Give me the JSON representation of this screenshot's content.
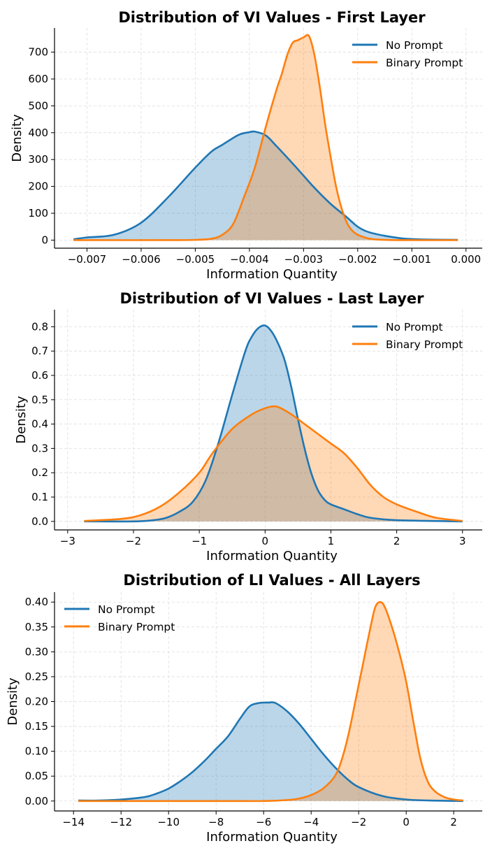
{
  "colors": {
    "no_prompt": "#1f77b4",
    "binary_prompt": "#ff7f0e"
  },
  "chart_data": [
    {
      "type": "line",
      "fill": true,
      "title": "Distribution of VI Values - First Layer",
      "xlabel": "Information Quantity",
      "ylabel": "Density",
      "xlim": [
        -0.0076,
        0.0003
      ],
      "ylim": [
        -30,
        790
      ],
      "xticks": [
        -0.007,
        -0.006,
        -0.005,
        -0.004,
        -0.003,
        -0.002,
        -0.001,
        0.0
      ],
      "xtick_labels": [
        "−0.007",
        "−0.006",
        "−0.005",
        "−0.004",
        "−0.003",
        "−0.002",
        "−0.001",
        "0.000"
      ],
      "yticks": [
        0,
        100,
        200,
        300,
        400,
        500,
        600,
        700
      ],
      "ytick_labels": [
        "0",
        "100",
        "200",
        "300",
        "400",
        "500",
        "600",
        "700"
      ],
      "legend_position": "top-right",
      "series": [
        {
          "name": "No Prompt",
          "x": [
            -0.00725,
            -0.007,
            -0.0065,
            -0.006,
            -0.0055,
            -0.005,
            -0.0047,
            -0.0045,
            -0.0042,
            -0.004,
            -0.0039,
            -0.0037,
            -0.0035,
            -0.0032,
            -0.003,
            -0.0028,
            -0.0025,
            -0.0022,
            -0.002,
            -0.0018,
            -0.0015,
            -0.0012,
            -0.001,
            -0.0007,
            -0.00015
          ],
          "values": [
            3,
            10,
            20,
            65,
            160,
            270,
            330,
            355,
            392,
            402,
            404,
            390,
            350,
            285,
            240,
            195,
            135,
            85,
            50,
            30,
            16,
            7,
            4,
            2,
            1
          ]
        },
        {
          "name": "Binary Prompt",
          "x": [
            -0.00725,
            -0.0055,
            -0.005,
            -0.0047,
            -0.0045,
            -0.0043,
            -0.0041,
            -0.0039,
            -0.0037,
            -0.0035,
            -0.0034,
            -0.0033,
            -0.0032,
            -0.0031,
            -0.003,
            -0.0029,
            -0.0028,
            -0.0027,
            -0.0026,
            -0.0025,
            -0.0024,
            -0.0023,
            -0.0022,
            -0.0021,
            -0.002,
            -0.0019,
            -0.0018,
            -0.0017,
            -0.0015,
            -0.0012,
            -0.00015
          ],
          "values": [
            0,
            0,
            1,
            5,
            20,
            60,
            160,
            270,
            420,
            560,
            620,
            690,
            735,
            745,
            755,
            760,
            690,
            570,
            430,
            310,
            200,
            120,
            65,
            35,
            20,
            12,
            6,
            3,
            1,
            0,
            0
          ]
        }
      ]
    },
    {
      "type": "line",
      "fill": true,
      "title": "Distribution of VI Values - Last Layer",
      "xlabel": "Information Quantity",
      "ylabel": "Density",
      "xlim": [
        -3.2,
        3.3
      ],
      "ylim": [
        -0.035,
        0.87
      ],
      "xticks": [
        -3,
        -2,
        -1,
        0,
        1,
        2,
        3
      ],
      "xtick_labels": [
        "−3",
        "−2",
        "−1",
        "0",
        "1",
        "2",
        "3"
      ],
      "yticks": [
        0.0,
        0.1,
        0.2,
        0.3,
        0.4,
        0.5,
        0.6,
        0.7,
        0.8
      ],
      "ytick_labels": [
        "0.0",
        "0.1",
        "0.2",
        "0.3",
        "0.4",
        "0.5",
        "0.6",
        "0.7",
        "0.8"
      ],
      "legend_position": "top-right",
      "series": [
        {
          "name": "No Prompt",
          "x": [
            -2.75,
            -2.0,
            -1.7,
            -1.5,
            -1.3,
            -1.1,
            -0.9,
            -0.7,
            -0.5,
            -0.3,
            -0.2,
            -0.1,
            0.0,
            0.1,
            0.2,
            0.3,
            0.4,
            0.5,
            0.6,
            0.7,
            0.8,
            0.9,
            1.0,
            1.2,
            1.4,
            1.6,
            2.0,
            3.0
          ],
          "values": [
            0,
            0,
            0.005,
            0.015,
            0.04,
            0.08,
            0.17,
            0.33,
            0.52,
            0.7,
            0.76,
            0.795,
            0.805,
            0.78,
            0.73,
            0.66,
            0.55,
            0.42,
            0.3,
            0.2,
            0.13,
            0.09,
            0.07,
            0.05,
            0.03,
            0.015,
            0.005,
            0.0
          ]
        },
        {
          "name": "Binary Prompt",
          "x": [
            -2.75,
            -2.2,
            -1.9,
            -1.6,
            -1.3,
            -1.0,
            -0.8,
            -0.5,
            -0.2,
            0.0,
            0.1,
            0.2,
            0.4,
            0.6,
            0.8,
            1.0,
            1.2,
            1.4,
            1.6,
            1.8,
            2.0,
            2.3,
            2.6,
            3.0
          ],
          "values": [
            0.002,
            0.01,
            0.025,
            0.06,
            0.12,
            0.2,
            0.28,
            0.38,
            0.44,
            0.465,
            0.472,
            0.47,
            0.44,
            0.4,
            0.36,
            0.32,
            0.28,
            0.22,
            0.15,
            0.1,
            0.07,
            0.04,
            0.015,
            0.002
          ]
        }
      ]
    },
    {
      "type": "line",
      "fill": true,
      "title": "Distribution of LI Values - All Layers",
      "xlabel": "Information Quantity",
      "ylabel": "Density",
      "xlim": [
        -14.8,
        3.2
      ],
      "ylim": [
        -0.02,
        0.42
      ],
      "xticks": [
        -14,
        -12,
        -10,
        -8,
        -6,
        -4,
        -2,
        0,
        2
      ],
      "xtick_labels": [
        "−14",
        "−12",
        "−10",
        "−8",
        "−6",
        "−4",
        "−2",
        "0",
        "2"
      ],
      "yticks": [
        0.0,
        0.05,
        0.1,
        0.15,
        0.2,
        0.25,
        0.3,
        0.35,
        0.4
      ],
      "ytick_labels": [
        "0.00",
        "0.05",
        "0.10",
        "0.15",
        "0.20",
        "0.25",
        "0.30",
        "0.35",
        "0.40"
      ],
      "legend_position": "top-left",
      "series": [
        {
          "name": "No Prompt",
          "x": [
            -13.8,
            -13.0,
            -12.0,
            -11.0,
            -10.5,
            -10.0,
            -9.5,
            -9.0,
            -8.5,
            -8.0,
            -7.5,
            -7.0,
            -6.6,
            -6.2,
            -5.8,
            -5.5,
            -5.0,
            -4.5,
            -4.0,
            -3.5,
            -3.0,
            -2.5,
            -2.0,
            -1.0,
            0.0,
            1.0,
            2.4
          ],
          "values": [
            0.001,
            0.001,
            0.003,
            0.008,
            0.015,
            0.025,
            0.04,
            0.058,
            0.08,
            0.105,
            0.13,
            0.165,
            0.19,
            0.197,
            0.198,
            0.197,
            0.18,
            0.155,
            0.125,
            0.095,
            0.068,
            0.045,
            0.028,
            0.01,
            0.003,
            0.001,
            0.0
          ]
        },
        {
          "name": "Binary Prompt",
          "x": [
            -13.8,
            -8.0,
            -6.0,
            -5.0,
            -4.5,
            -4.0,
            -3.5,
            -3.0,
            -2.7,
            -2.4,
            -2.1,
            -1.8,
            -1.5,
            -1.3,
            -1.1,
            -0.9,
            -0.6,
            -0.3,
            0.0,
            0.3,
            0.6,
            0.9,
            1.2,
            1.6,
            2.0,
            2.4
          ],
          "values": [
            0.0,
            0.0,
            0.0,
            0.002,
            0.005,
            0.012,
            0.025,
            0.05,
            0.085,
            0.14,
            0.21,
            0.28,
            0.35,
            0.39,
            0.4,
            0.39,
            0.35,
            0.3,
            0.24,
            0.16,
            0.085,
            0.04,
            0.02,
            0.008,
            0.003,
            0.001
          ]
        }
      ]
    }
  ]
}
